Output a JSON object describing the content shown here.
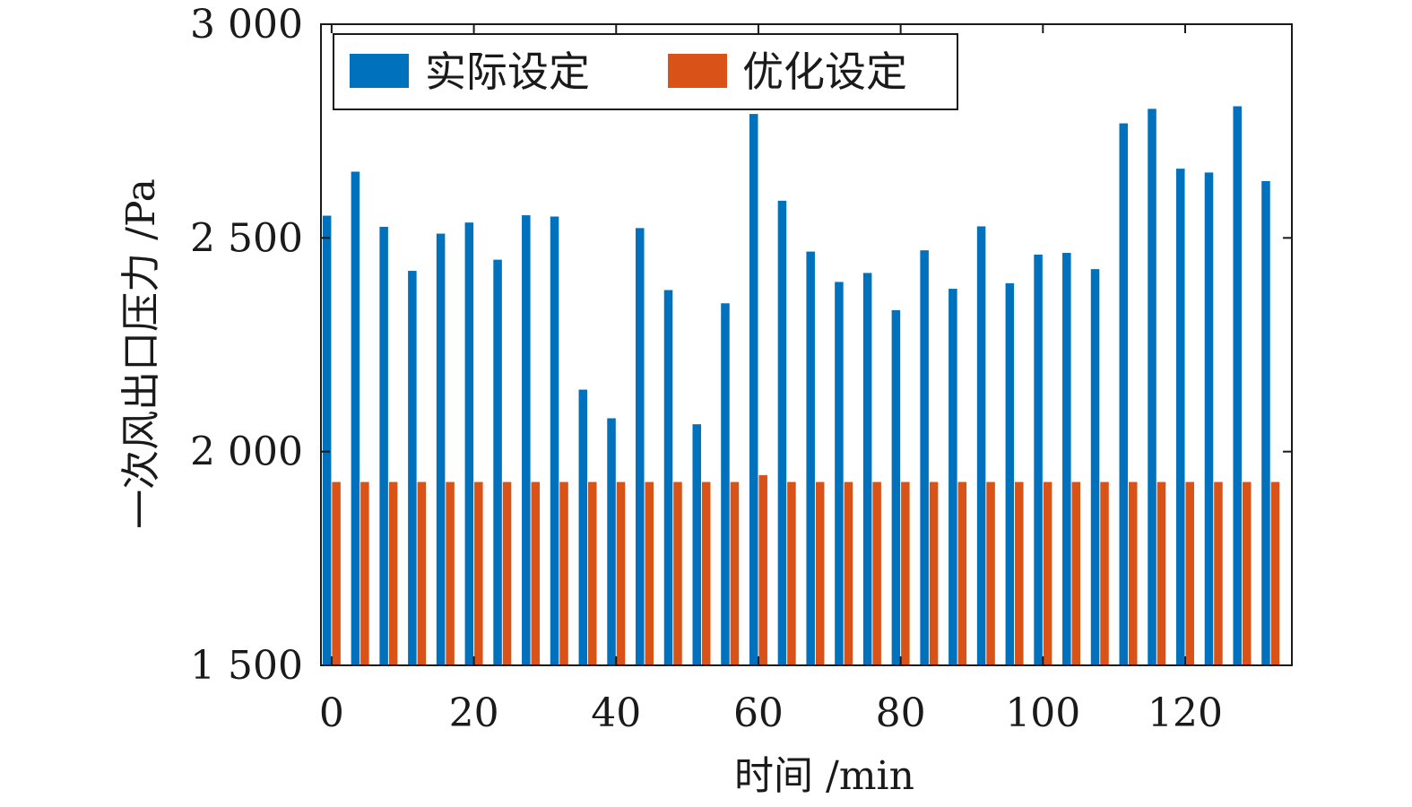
{
  "chart_data": {
    "type": "bar",
    "xlabel": "时间 /min",
    "ylabel": "一次风出口压力 /Pa",
    "xlim": [
      -1.5,
      135
    ],
    "ylim": [
      1500,
      3000
    ],
    "xticks": [
      0,
      20,
      40,
      60,
      80,
      100,
      120
    ],
    "xtick_labels": [
      "0",
      "20",
      "40",
      "60",
      "80",
      "100",
      "120"
    ],
    "yticks": [
      1500,
      2000,
      2500,
      3000
    ],
    "ytick_labels": [
      "1 500",
      "2 000",
      "2 500",
      "3 000"
    ],
    "legend_position": "top-left",
    "grid": false,
    "x": [
      0,
      4,
      8,
      12,
      16,
      20,
      24,
      28,
      32,
      36,
      40,
      44,
      48,
      52,
      56,
      60,
      64,
      68,
      72,
      76,
      80,
      84,
      88,
      92,
      96,
      100,
      104,
      108,
      112,
      116,
      120,
      124,
      128,
      132
    ],
    "series": [
      {
        "name": "实际设定",
        "color": "#0072BD",
        "values": [
          2552,
          2655,
          2526,
          2423,
          2510,
          2536,
          2449,
          2553,
          2550,
          2145,
          2078,
          2523,
          2378,
          2064,
          2347,
          2790,
          2587,
          2468,
          2397,
          2418,
          2331,
          2471,
          2381,
          2527,
          2394,
          2461,
          2465,
          2427,
          2768,
          2802,
          2662,
          2653,
          2808,
          2633
        ]
      },
      {
        "name": "优化设定",
        "color": "#D95319",
        "values": [
          1929,
          1929,
          1929,
          1929,
          1929,
          1929,
          1929,
          1929,
          1929,
          1929,
          1929,
          1929,
          1929,
          1929,
          1929,
          1945,
          1929,
          1929,
          1929,
          1929,
          1929,
          1929,
          1929,
          1929,
          1929,
          1929,
          1929,
          1929,
          1929,
          1929,
          1929,
          1929,
          1929,
          1929
        ]
      }
    ]
  }
}
